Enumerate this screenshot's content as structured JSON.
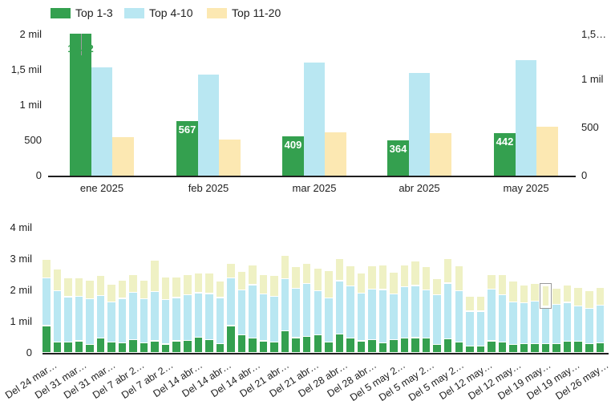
{
  "legend": {
    "items": [
      {
        "label": "Top 1-3",
        "color": "#34a04f"
      },
      {
        "label": "Top 4-10",
        "color": "#b9e7f2"
      },
      {
        "label": "Top 11-20",
        "color": "#fce8b2"
      }
    ]
  },
  "chart_data": [
    {
      "type": "bar",
      "name": "monthly-top-positions",
      "title": "",
      "legend_position": "top",
      "grid": false,
      "categories": [
        "ene 2025",
        "feb 2025",
        "mar 2025",
        "abr 2025",
        "may 2025"
      ],
      "series": [
        {
          "name": "Top 1-3",
          "color": "#34a04f",
          "axis": "right",
          "values": [
            1472,
            567,
            409,
            364,
            442
          ],
          "annotations": [
            "1.472",
            "567",
            "409",
            "364",
            "442"
          ],
          "annotation_outside_index": 0
        },
        {
          "name": "Top 4-10",
          "color": "#b9e7f2",
          "axis": "left",
          "values": [
            1530,
            1430,
            1600,
            1450,
            1630
          ]
        },
        {
          "name": "Top 11-20",
          "color": "#fce8b2",
          "axis": "left",
          "values": [
            545,
            505,
            610,
            600,
            690
          ]
        }
      ],
      "left_axis": {
        "max": 2000,
        "ticks": [
          {
            "label": "0",
            "value": 0
          },
          {
            "label": "500",
            "value": 500
          },
          {
            "label": "1 mil",
            "value": 1000
          },
          {
            "label": "1,5 mil",
            "value": 1500
          },
          {
            "label": "2 mil",
            "value": 2000
          }
        ]
      },
      "right_axis": {
        "max": 1500,
        "ticks": [
          {
            "label": "0",
            "value": 0
          },
          {
            "label": "500",
            "value": 500
          },
          {
            "label": "1 mil",
            "value": 1000
          },
          {
            "label": "1,5…",
            "value": 1500
          }
        ]
      }
    },
    {
      "type": "stacked-bar",
      "name": "weekly-position-distribution",
      "title": "",
      "grid": false,
      "series_names": [
        "Top 1-3",
        "Top 4-10",
        "Top 11-20"
      ],
      "colors": [
        "#34a04f",
        "#b9e7f2",
        "#eff1c4"
      ],
      "y_axis": {
        "max": 4000,
        "ticks": [
          {
            "label": "0",
            "value": 0
          },
          {
            "label": "1 mil",
            "value": 1000
          },
          {
            "label": "2 mil",
            "value": 2000
          },
          {
            "label": "3 mil",
            "value": 3000
          },
          {
            "label": "4 mil",
            "value": 4000
          }
        ]
      },
      "x_labels": [
        "Del 24 mar…",
        "Del 31 mar…",
        "Del 31 mar…",
        "Del 7 abr 2…",
        "Del 7 abr 2…",
        "Del 14 abr…",
        "Del 14 abr…",
        "Del 14 abr…",
        "Del 21 abr…",
        "Del 21 abr…",
        "Del 28 abr…",
        "Del 28 abr…",
        "Del 5 may 2…",
        "Del 5 may 2…",
        "Del 5 may 2…",
        "Del 12 may…",
        "Del 12 may…",
        "Del 19 may…",
        "Del 19 may…",
        "Del 26 may…"
      ],
      "bars": [
        [
          855,
          1525,
          590
        ],
        [
          325,
          1645,
          690
        ],
        [
          325,
          1455,
          610
        ],
        [
          370,
          1420,
          600
        ],
        [
          260,
          1450,
          600
        ],
        [
          460,
          1360,
          630
        ],
        [
          325,
          1295,
          560
        ],
        [
          300,
          1430,
          580
        ],
        [
          410,
          1510,
          580
        ],
        [
          300,
          1420,
          600
        ],
        [
          370,
          1580,
          1000
        ],
        [
          265,
          1425,
          730
        ],
        [
          370,
          1380,
          670
        ],
        [
          385,
          1455,
          660
        ],
        [
          490,
          1420,
          630
        ],
        [
          400,
          1480,
          660
        ],
        [
          280,
          1470,
          540
        ],
        [
          855,
          1525,
          470
        ],
        [
          560,
          1430,
          610
        ],
        [
          450,
          1710,
          630
        ],
        [
          370,
          1490,
          620
        ],
        [
          325,
          1465,
          660
        ],
        [
          680,
          1670,
          740
        ],
        [
          470,
          1580,
          690
        ],
        [
          510,
          1700,
          640
        ],
        [
          555,
          1415,
          720
        ],
        [
          325,
          1410,
          875
        ],
        [
          580,
          1710,
          700
        ],
        [
          450,
          1670,
          640
        ],
        [
          370,
          1530,
          640
        ],
        [
          410,
          1620,
          730
        ],
        [
          300,
          1710,
          780
        ],
        [
          410,
          1450,
          700
        ],
        [
          450,
          1640,
          700
        ],
        [
          470,
          1670,
          790
        ],
        [
          450,
          1540,
          750
        ],
        [
          260,
          1580,
          530
        ],
        [
          430,
          1780,
          780
        ],
        [
          325,
          1645,
          790
        ],
        [
          210,
          1110,
          470
        ],
        [
          210,
          1110,
          470
        ],
        [
          370,
          1650,
          460
        ],
        [
          325,
          1515,
          660
        ],
        [
          260,
          1360,
          670
        ],
        [
          270,
          1310,
          580
        ],
        [
          270,
          1370,
          560
        ],
        [
          270,
          1200,
          710
        ],
        [
          270,
          1270,
          510
        ],
        [
          350,
          1250,
          550
        ],
        [
          350,
          1140,
          590
        ],
        [
          270,
          1140,
          560
        ],
        [
          300,
          1210,
          570
        ]
      ],
      "selected": {
        "bar_index": 46,
        "segment": "Top 11-20",
        "segment_index": 2
      }
    }
  ]
}
